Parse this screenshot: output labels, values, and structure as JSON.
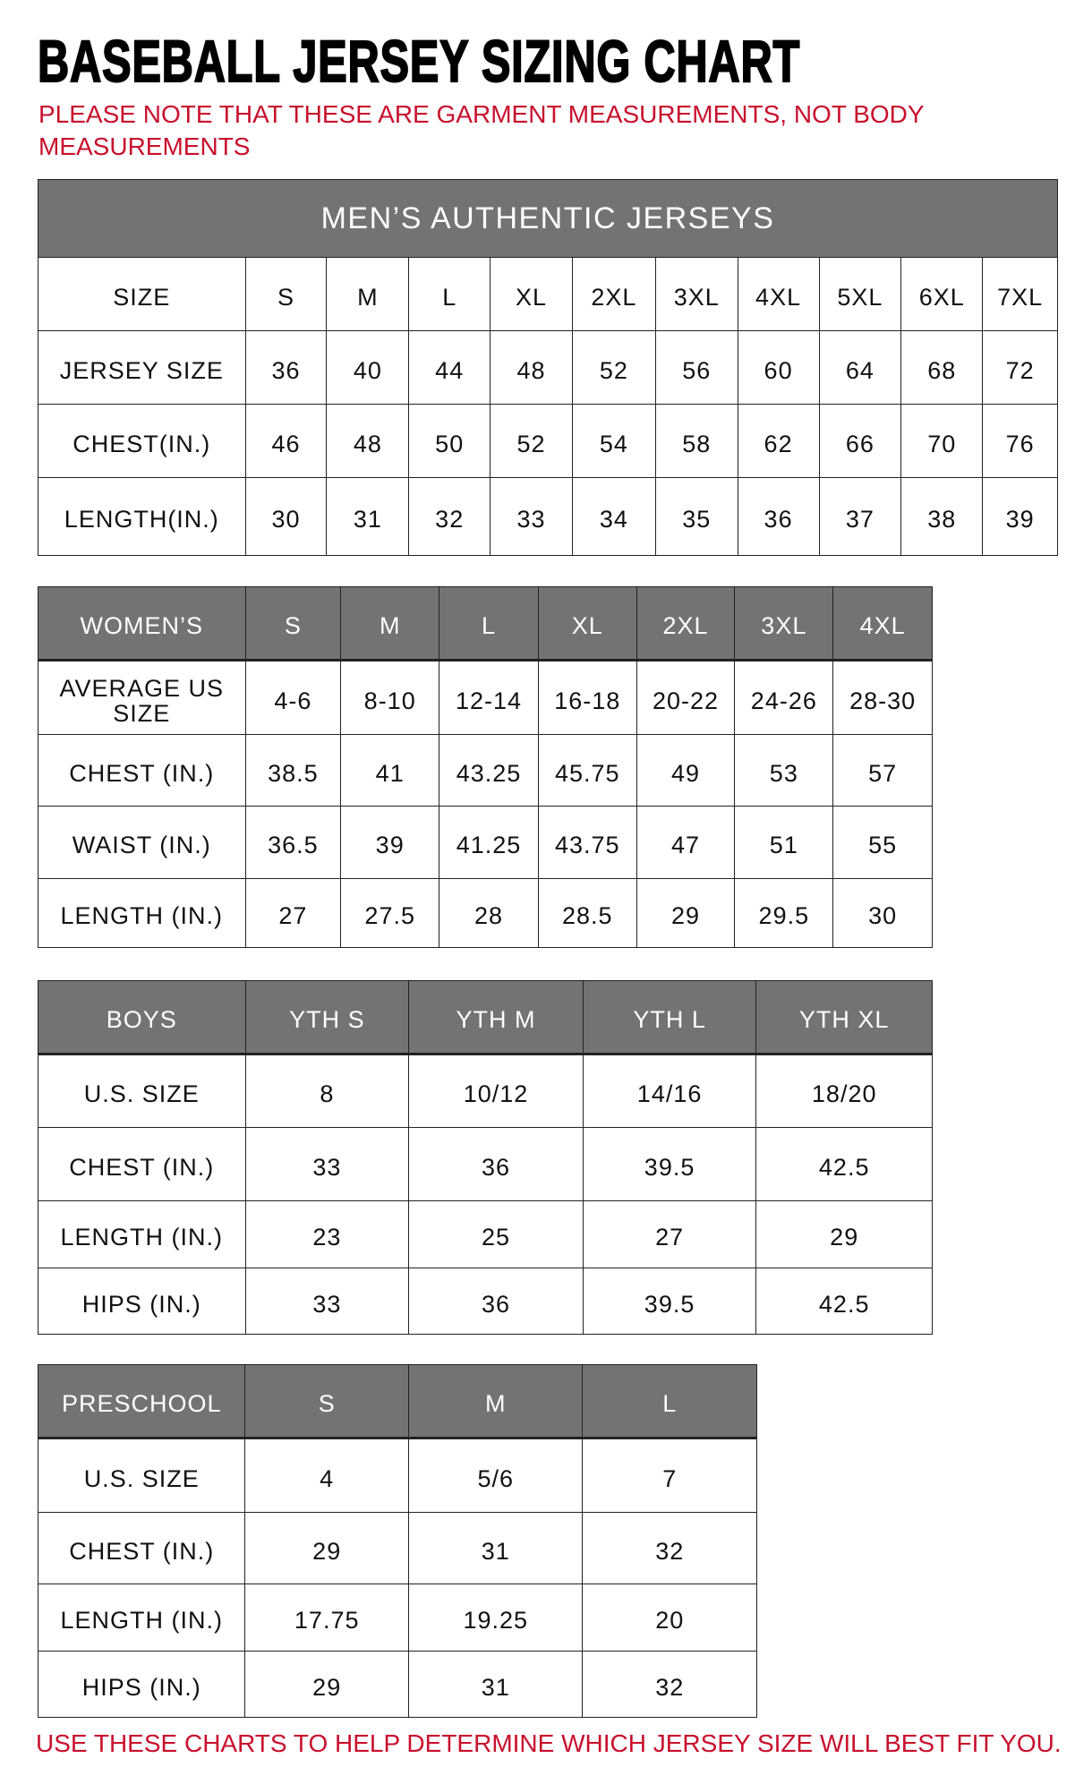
{
  "title": "BASEBALL JERSEY SIZING CHART",
  "note": "PLEASE NOTE THAT THESE ARE GARMENT MEASUREMENTS, NOT BODY MEASUREMENTS",
  "footer": "USE THESE CHARTS TO HELP DETERMINE WHICH JERSEY SIZE WILL BEST FIT YOU.",
  "colors": {
    "header_bg": "#737373",
    "note_red": "#c8102e"
  },
  "tables": [
    {
      "id": "mens",
      "banner": "MEN’S AUTHENTIC JERSEYS",
      "header": [
        "SIZE",
        "S",
        "M",
        "L",
        "XL",
        "2XL",
        "3XL",
        "4XL",
        "5XL",
        "6XL",
        "7XL"
      ],
      "rows": [
        [
          "JERSEY SIZE",
          "36",
          "40",
          "44",
          "48",
          "52",
          "56",
          "60",
          "64",
          "68",
          "72"
        ],
        [
          "CHEST(IN.)",
          "46",
          "48",
          "50",
          "52",
          "54",
          "58",
          "62",
          "66",
          "70",
          "76"
        ],
        [
          "LENGTH(IN.)",
          "30",
          "31",
          "32",
          "33",
          "34",
          "35",
          "36",
          "37",
          "38",
          "39"
        ]
      ]
    },
    {
      "id": "womens",
      "header": [
        "WOMEN’S",
        "S",
        "M",
        "L",
        "XL",
        "2XL",
        "3XL",
        "4XL"
      ],
      "rows": [
        [
          "AVERAGE US SIZE",
          "4-6",
          "8-10",
          "12-14",
          "16-18",
          "20-22",
          "24-26",
          "28-30"
        ],
        [
          "CHEST (IN.)",
          "38.5",
          "41",
          "43.25",
          "45.75",
          "49",
          "53",
          "57"
        ],
        [
          "WAIST (IN.)",
          "36.5",
          "39",
          "41.25",
          "43.75",
          "47",
          "51",
          "55"
        ],
        [
          "LENGTH (IN.)",
          "27",
          "27.5",
          "28",
          "28.5",
          "29",
          "29.5",
          "30"
        ]
      ]
    },
    {
      "id": "boys",
      "header": [
        "BOYS",
        "YTH S",
        "YTH M",
        "YTH L",
        "YTH XL"
      ],
      "rows": [
        [
          "U.S. SIZE",
          "8",
          "10/12",
          "14/16",
          "18/20"
        ],
        [
          "CHEST (IN.)",
          "33",
          "36",
          "39.5",
          "42.5"
        ],
        [
          "LENGTH (IN.)",
          "23",
          "25",
          "27",
          "29"
        ],
        [
          "HIPS (IN.)",
          "33",
          "36",
          "39.5",
          "42.5"
        ]
      ]
    },
    {
      "id": "preschool",
      "header": [
        "PRESCHOOL",
        "S",
        "M",
        "L"
      ],
      "rows": [
        [
          "U.S. SIZE",
          "4",
          "5/6",
          "7"
        ],
        [
          "CHEST (IN.)",
          "29",
          "31",
          "32"
        ],
        [
          "LENGTH (IN.)",
          "17.75",
          "19.25",
          "20"
        ],
        [
          "HIPS (IN.)",
          "29",
          "31",
          "32"
        ]
      ]
    }
  ]
}
